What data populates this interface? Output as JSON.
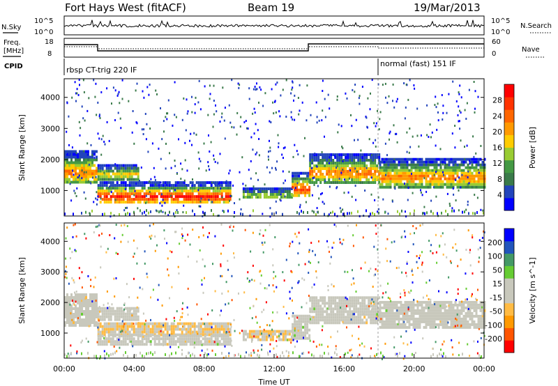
{
  "header": {
    "title": "Fort Hays West (fitACF)",
    "beam": "Beam 19",
    "date": "19/Mar/2013"
  },
  "noise_panel": {
    "left_label": "N.Sky",
    "right_label": "N.Search",
    "top_tick": "10^5",
    "bottom_tick": "10^0",
    "right_top_tick": "10^5",
    "right_bottom_tick": "10^0"
  },
  "freq_panel": {
    "left_label_1": "Freq.",
    "left_label_2": "[MHz]",
    "right_label": "Nave",
    "left_ticks": [
      "18",
      "8"
    ],
    "right_ticks": [
      "60",
      "0"
    ],
    "cpid_label": "CPID"
  },
  "cpid": [
    {
      "label": "rbsp CT-trig 220 IF",
      "start_hour": 0
    },
    {
      "label": "normal (fast) 151 IF",
      "start_hour": 18
    }
  ],
  "colors": {
    "power_scale": [
      "#0000ff",
      "#2244bb",
      "#3a7a4a",
      "#449944",
      "#99cc33",
      "#ffcc00",
      "#ff9900",
      "#ff6600",
      "#ff3300",
      "#ff0000"
    ],
    "velocity_scale": [
      "#ff0000",
      "#ff5500",
      "#ff9900",
      "#ffbb44",
      "#c8c8bc",
      "#c8c8bc",
      "#66cc33",
      "#449966",
      "#2255bb",
      "#0000ff"
    ]
  },
  "chart_data": [
    {
      "type": "heatmap",
      "name": "power-panel",
      "ylabel": "Slant Range [km]",
      "xlim": [
        0,
        24
      ],
      "ylim": [
        180,
        4600
      ],
      "yticks": [
        "1000",
        "2000",
        "3000",
        "4000"
      ],
      "ytick_values": [
        1000,
        2000,
        3000,
        4000
      ],
      "colorbar_label": "Power [dB]",
      "colorbar_ticks": [
        "4",
        "8",
        "12",
        "16",
        "20",
        "24",
        "28"
      ],
      "colorbar_range": [
        0,
        30
      ],
      "echo_regions": [
        {
          "t0": 0.0,
          "t1": 1.9,
          "r0": 1250,
          "r1": 2300,
          "peak": 22
        },
        {
          "t0": 1.9,
          "t1": 4.2,
          "r0": 1400,
          "r1": 1850,
          "peak": 18
        },
        {
          "t0": 1.9,
          "t1": 9.5,
          "r0": 600,
          "r1": 1300,
          "peak": 28
        },
        {
          "t0": 10.2,
          "t1": 13.0,
          "r0": 750,
          "r1": 1100,
          "peak": 16
        },
        {
          "t0": 13.0,
          "t1": 14.0,
          "r0": 800,
          "r1": 1600,
          "peak": 26
        },
        {
          "t0": 14.0,
          "t1": 18.0,
          "r0": 1300,
          "r1": 2200,
          "peak": 22
        },
        {
          "t0": 18.0,
          "t1": 24.0,
          "r0": 1150,
          "r1": 2050,
          "peak": 22
        }
      ]
    },
    {
      "type": "heatmap",
      "name": "velocity-panel",
      "ylabel": "Slant Range [km]",
      "xlabel": "Time UT",
      "xlim": [
        0,
        24
      ],
      "ylim": [
        180,
        4600
      ],
      "yticks": [
        "1000",
        "2000",
        "3000",
        "4000"
      ],
      "ytick_values": [
        1000,
        2000,
        3000,
        4000
      ],
      "xticks": [
        "00:00",
        "04:00",
        "08:00",
        "12:00",
        "16:00",
        "20:00",
        "00:00"
      ],
      "xtick_values": [
        0,
        4,
        8,
        12,
        16,
        20,
        24
      ],
      "colorbar_label": "Velocity [m s^-1]",
      "colorbar_ticks": [
        "200",
        "100",
        "50",
        "15",
        "-15",
        "-50",
        "-100",
        "-200"
      ],
      "colorbar_range": [
        -250,
        250
      ],
      "echo_regions": [
        {
          "t0": 0.0,
          "t1": 1.9,
          "r0": 1250,
          "r1": 2300,
          "v": 0
        },
        {
          "t0": 1.9,
          "t1": 4.2,
          "r0": 1400,
          "r1": 1850,
          "v": 0
        },
        {
          "t0": 1.9,
          "t1": 9.5,
          "r0": 950,
          "r1": 1350,
          "v": -50
        },
        {
          "t0": 1.9,
          "t1": 9.5,
          "r0": 600,
          "r1": 950,
          "v": 0
        },
        {
          "t0": 10.2,
          "t1": 13.0,
          "r0": 750,
          "r1": 1100,
          "v": -50
        },
        {
          "t0": 13.0,
          "t1": 14.0,
          "r0": 800,
          "r1": 1600,
          "v": 0
        },
        {
          "t0": 14.0,
          "t1": 18.0,
          "r0": 1300,
          "r1": 2200,
          "v": 0
        },
        {
          "t0": 18.0,
          "t1": 24.0,
          "r0": 1150,
          "r1": 2050,
          "v": 0
        }
      ]
    }
  ]
}
